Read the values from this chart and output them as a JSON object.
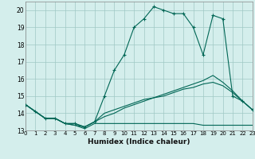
{
  "xlabel": "Humidex (Indice chaleur)",
  "xlim": [
    0,
    23
  ],
  "ylim": [
    13,
    20.5
  ],
  "yticks": [
    13,
    14,
    15,
    16,
    17,
    18,
    19,
    20
  ],
  "xticks": [
    0,
    1,
    2,
    3,
    4,
    5,
    6,
    7,
    8,
    9,
    10,
    11,
    12,
    13,
    14,
    15,
    16,
    17,
    18,
    19,
    20,
    21,
    22,
    23
  ],
  "xtick_labels": [
    "0",
    "1",
    "2",
    "3",
    "4",
    "5",
    "6",
    "7",
    "8",
    "9",
    "10",
    "11",
    "12",
    "13",
    "14",
    "15",
    "16",
    "17",
    "18",
    "19",
    "20",
    "21",
    "22",
    "23"
  ],
  "bg_color": "#d4eeec",
  "grid_color": "#a0c8c4",
  "line_color": "#006655",
  "line1_x": [
    0,
    1,
    2,
    3,
    4,
    5,
    6,
    7,
    8,
    9,
    10,
    11,
    12,
    13,
    14,
    15,
    16,
    17,
    18,
    19,
    20,
    21,
    22,
    23
  ],
  "line1_y": [
    14.5,
    14.1,
    13.7,
    13.7,
    13.4,
    13.4,
    13.2,
    13.5,
    15.0,
    16.5,
    17.4,
    19.0,
    19.5,
    20.2,
    20.0,
    19.8,
    19.8,
    19.0,
    17.4,
    19.7,
    19.5,
    15.0,
    14.7,
    14.2
  ],
  "line2_x": [
    0,
    1,
    2,
    3,
    4,
    5,
    6,
    7,
    8,
    9,
    10,
    11,
    12,
    13,
    14,
    15,
    16,
    17,
    18,
    19,
    20,
    21,
    22,
    23
  ],
  "line2_y": [
    14.5,
    14.1,
    13.7,
    13.7,
    13.4,
    13.4,
    13.2,
    13.5,
    14.0,
    14.2,
    14.4,
    14.6,
    14.8,
    14.9,
    15.0,
    15.2,
    15.4,
    15.5,
    15.7,
    15.8,
    15.6,
    15.2,
    14.7,
    14.2
  ],
  "line3_x": [
    0,
    1,
    2,
    3,
    4,
    5,
    6,
    7,
    8,
    9,
    10,
    11,
    12,
    13,
    14,
    15,
    16,
    17,
    18,
    19,
    20,
    21,
    22,
    23
  ],
  "line3_y": [
    14.5,
    14.1,
    13.7,
    13.7,
    13.4,
    13.3,
    13.1,
    13.4,
    13.4,
    13.4,
    13.4,
    13.4,
    13.4,
    13.4,
    13.4,
    13.4,
    13.4,
    13.4,
    13.3,
    13.3,
    13.3,
    13.3,
    13.3,
    13.3
  ],
  "line4_x": [
    0,
    1,
    2,
    3,
    4,
    5,
    6,
    7,
    8,
    9,
    10,
    11,
    12,
    13,
    14,
    15,
    16,
    17,
    18,
    19,
    20,
    21,
    22,
    23
  ],
  "line4_y": [
    14.5,
    14.1,
    13.7,
    13.7,
    13.4,
    13.3,
    13.2,
    13.5,
    13.8,
    14.0,
    14.3,
    14.5,
    14.7,
    14.9,
    15.1,
    15.3,
    15.5,
    15.7,
    15.9,
    16.2,
    15.8,
    15.3,
    14.7,
    14.2
  ]
}
